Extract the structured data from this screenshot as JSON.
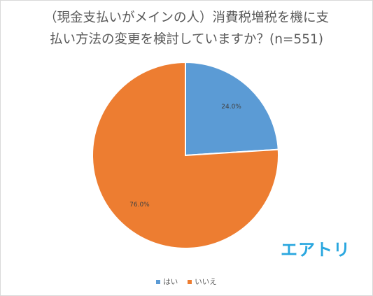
{
  "chart_data": {
    "type": "pie",
    "title_lines": [
      "（現金支払いがメインの人）消費税増税を機に支",
      "払い方法の変更を検討していますか？(n=551)"
    ],
    "categories": [
      "はい",
      "いいえ"
    ],
    "values": [
      24.0,
      76.0
    ],
    "labels": [
      "24.0%",
      "76.0%"
    ],
    "colors": [
      "#5b9bd5",
      "#ed7d31"
    ],
    "legend_position": "bottom"
  },
  "watermark": {
    "text": "エアトリ",
    "color": "#2aa7df"
  }
}
